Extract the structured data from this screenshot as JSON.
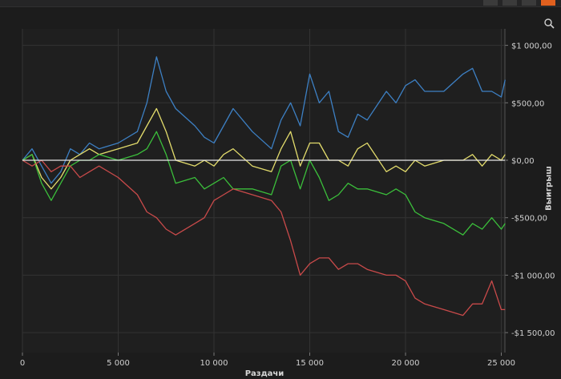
{
  "toolbar": {
    "buttons": [
      "button-1",
      "button-2",
      "button-3",
      "button-4"
    ],
    "accent_color": "#e0601e"
  },
  "chart_data": {
    "type": "line",
    "xlabel": "Раздачи",
    "ylabel": "Выигрыш",
    "xlim": [
      0,
      25300
    ],
    "ylim": [
      -1500,
      1000
    ],
    "xticks": [
      0,
      5000,
      10000,
      15000,
      20000,
      25000
    ],
    "xtick_labels": [
      "0",
      "5 000",
      "10 000",
      "15 000",
      "20 000",
      "25 000"
    ],
    "yticks": [
      1000,
      500,
      0,
      -500,
      -1000,
      -1500
    ],
    "ytick_labels": [
      "$1 000,00",
      "$500,00",
      "$0,00",
      "-$500,00",
      "-$1 000,00",
      "-$1 500,00"
    ],
    "grid": true,
    "zero_line_color": "#e8e8e8",
    "series": [
      {
        "color": "#3d80c4",
        "x": [
          0,
          500,
          1000,
          1500,
          2000,
          2500,
          3000,
          3500,
          4000,
          5000,
          6000,
          6500,
          7000,
          7500,
          8000,
          9000,
          9500,
          10000,
          10500,
          11000,
          12000,
          13000,
          13500,
          14000,
          14500,
          15000,
          15500,
          16000,
          16500,
          17000,
          17500,
          18000,
          19000,
          19500,
          20000,
          20500,
          21000,
          22000,
          23000,
          23500,
          24000,
          24500,
          25000,
          25200
        ],
        "y": [
          0,
          100,
          -50,
          -200,
          -100,
          100,
          50,
          150,
          100,
          150,
          250,
          500,
          900,
          600,
          450,
          300,
          200,
          150,
          300,
          450,
          250,
          100,
          350,
          500,
          300,
          750,
          500,
          600,
          250,
          200,
          400,
          350,
          600,
          500,
          650,
          700,
          600,
          600,
          750,
          800,
          600,
          600,
          550,
          700
        ]
      },
      {
        "color": "#e3dc6c",
        "x": [
          0,
          500,
          1000,
          1500,
          2000,
          2500,
          3000,
          3500,
          4000,
          5000,
          6000,
          6500,
          7000,
          7500,
          8000,
          9000,
          9500,
          10000,
          10500,
          11000,
          12000,
          13000,
          13500,
          14000,
          14500,
          15000,
          15500,
          16000,
          16500,
          17000,
          17500,
          18000,
          19000,
          19500,
          20000,
          20500,
          21000,
          22000,
          23000,
          23500,
          24000,
          24500,
          25000,
          25200
        ],
        "y": [
          0,
          50,
          -150,
          -250,
          -150,
          0,
          50,
          100,
          50,
          100,
          150,
          300,
          450,
          250,
          0,
          -50,
          0,
          -50,
          50,
          100,
          -50,
          -100,
          100,
          250,
          -50,
          150,
          150,
          0,
          0,
          -50,
          100,
          150,
          -100,
          -50,
          -100,
          0,
          -50,
          0,
          0,
          50,
          -50,
          50,
          0,
          50
        ]
      },
      {
        "color": "#3bbf3b",
        "x": [
          0,
          500,
          1000,
          1500,
          2000,
          2500,
          3000,
          3500,
          4000,
          5000,
          6000,
          6500,
          7000,
          7500,
          8000,
          9000,
          9500,
          10000,
          10500,
          11000,
          12000,
          13000,
          13500,
          14000,
          14500,
          15000,
          15500,
          16000,
          16500,
          17000,
          17500,
          18000,
          19000,
          19500,
          20000,
          20500,
          21000,
          22000,
          23000,
          23500,
          24000,
          24500,
          25000,
          25200
        ],
        "y": [
          0,
          50,
          -200,
          -350,
          -200,
          -50,
          0,
          0,
          50,
          0,
          50,
          100,
          250,
          50,
          -200,
          -150,
          -250,
          -200,
          -150,
          -250,
          -250,
          -300,
          -50,
          0,
          -250,
          0,
          -150,
          -350,
          -300,
          -200,
          -250,
          -250,
          -300,
          -250,
          -300,
          -450,
          -500,
          -550,
          -650,
          -550,
          -600,
          -500,
          -600,
          -550
        ]
      },
      {
        "color": "#c94a4a",
        "x": [
          0,
          500,
          1000,
          1500,
          2000,
          2500,
          3000,
          3500,
          4000,
          5000,
          6000,
          6500,
          7000,
          7500,
          8000,
          9000,
          9500,
          10000,
          10500,
          11000,
          12000,
          13000,
          13500,
          14000,
          14500,
          15000,
          15500,
          16000,
          16500,
          17000,
          17500,
          18000,
          19000,
          19500,
          20000,
          20500,
          21000,
          22000,
          23000,
          23500,
          24000,
          24500,
          25000,
          25200
        ],
        "y": [
          0,
          -50,
          0,
          -100,
          -50,
          -50,
          -150,
          -100,
          -50,
          -150,
          -300,
          -450,
          -500,
          -600,
          -650,
          -550,
          -500,
          -350,
          -300,
          -250,
          -300,
          -350,
          -450,
          -700,
          -1000,
          -900,
          -850,
          -850,
          -950,
          -900,
          -900,
          -950,
          -1000,
          -1000,
          -1050,
          -1200,
          -1250,
          -1300,
          -1350,
          -1250,
          -1250,
          -1050,
          -1300,
          -1300
        ]
      }
    ]
  }
}
